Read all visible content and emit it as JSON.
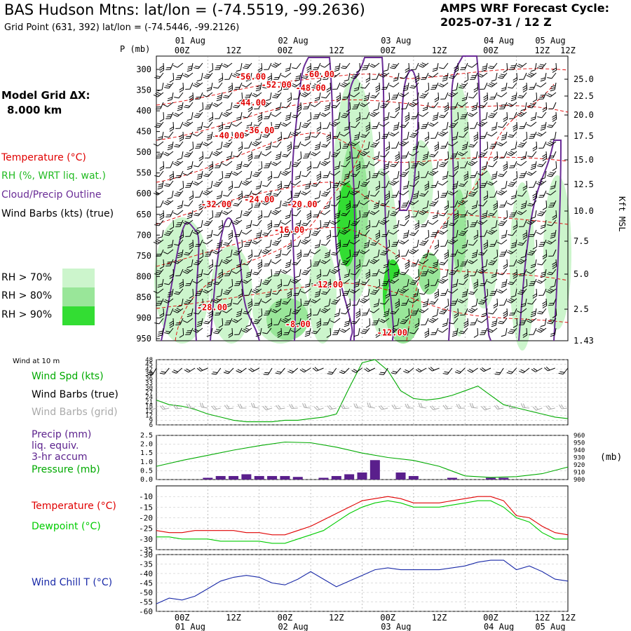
{
  "header": {
    "title": "BAS Hudson Mtns:  lat/lon = (-74.5519, -99.2636)",
    "subtitle": "Grid Point (631, 392) lat/lon = (-74.5446, -99.2126)",
    "forecast_line1": "AMPS WRF Forecast Cycle:",
    "forecast_line2": "2025-07-31 / 12  Z"
  },
  "model_grid": {
    "line1": "Model Grid ΔX:",
    "line2": "8.000 km"
  },
  "colors": {
    "temperature": "#e00000",
    "rh": "#22bb22",
    "cloud": "#6a2c96",
    "wind": "#000000",
    "wind_grid": "#aaaaaa",
    "precip": "#5a1f8c",
    "pressure": "#00aa00",
    "dewpoint": "#00cc00",
    "windchill": "#1a2aa8",
    "rh70": "#ccf5cc",
    "rh80": "#99e699",
    "rh90": "#33dd33"
  },
  "legend": {
    "temperature": "Temperature (°C)",
    "rh": "RH (%, WRT liq. wat.)",
    "cloud": "Cloud/Precip Outline",
    "wind": "Wind Barbs (kts) (true)",
    "rh70": "RH > 70%",
    "rh80": "RH > 80%",
    "rh90": "RH > 90%"
  },
  "time_axis": {
    "top_hours": [
      "00Z",
      "12Z",
      "00Z",
      "12Z",
      "00Z",
      "12Z",
      "00Z",
      "12Z",
      "00Z",
      "12Z"
    ],
    "dates": [
      "01 Aug",
      "02 Aug",
      "03 Aug",
      "04 Aug",
      "05 Aug"
    ]
  },
  "panel_labels": {
    "p_axis": "P (mb)",
    "kft_axis": "Kft MSL",
    "wind_at_10m": "Wind at 10 m",
    "wind_spd": "Wind Spd (kts)",
    "wind_barbs_true": "Wind Barbs (true)",
    "wind_barbs_grid": "Wind Barbs (grid)",
    "precip1": "Precip (mm)",
    "precip2": "liq. equiv.",
    "precip3": "3-hr accum",
    "pressure": "Pressure (mb)",
    "mb_unit": "(mb)",
    "temperature": "Temperature (°C)",
    "dewpoint": "Dewpoint (°C)",
    "windchill": "Wind Chill T (°C)"
  },
  "chart_data": [
    {
      "type": "heatmap",
      "ylabel": "P (mb)",
      "y2label": "Kft MSL",
      "pressure_ticks": [
        300,
        350,
        400,
        450,
        500,
        550,
        600,
        650,
        700,
        750,
        800,
        850,
        900,
        950
      ],
      "kft_ticks": [
        25.0,
        22.5,
        20.0,
        17.5,
        15.0,
        12.5,
        10.0,
        7.5,
        5.0,
        2.5,
        1.43
      ],
      "temperature_contour_labels": [
        {
          "label": "-56.00",
          "t": 22,
          "p": 318
        },
        {
          "label": "-60.00",
          "t": 38,
          "p": 312
        },
        {
          "label": "-52.00",
          "t": 28,
          "p": 337
        },
        {
          "label": "-48.00",
          "t": 36,
          "p": 345
        },
        {
          "label": "-44.00",
          "t": 22,
          "p": 380
        },
        {
          "label": "-36.00",
          "t": 24,
          "p": 447
        },
        {
          "label": "-40.00",
          "t": 17,
          "p": 460
        },
        {
          "label": "-24.00",
          "t": 24,
          "p": 614
        },
        {
          "label": "-32.00",
          "t": 14,
          "p": 626
        },
        {
          "label": "-20.00",
          "t": 34,
          "p": 626
        },
        {
          "label": "-16.00",
          "t": 31,
          "p": 688
        },
        {
          "label": "-12.00",
          "t": 40,
          "p": 820
        },
        {
          "label": "-28.00",
          "t": 13,
          "p": 875
        },
        {
          "label": "-8.00",
          "t": 33,
          "p": 915
        },
        {
          "label": "-12.00",
          "t": 55,
          "p": 936
        }
      ]
    },
    {
      "type": "line",
      "title": "Wind at 10 m",
      "ylabel": "Wind Spd (kts)",
      "yticks": [
        48,
        45,
        42,
        39,
        36,
        33,
        30,
        27,
        24,
        21,
        18,
        15,
        12,
        9,
        6
      ],
      "ylim": [
        6,
        48
      ],
      "x_hours": [
        0,
        3,
        6,
        9,
        12,
        15,
        18,
        21,
        24,
        27,
        30,
        33,
        36,
        39,
        42,
        45,
        48,
        51,
        54,
        57,
        60,
        63,
        66,
        69,
        72,
        75,
        78,
        81,
        84,
        87,
        90,
        93,
        96
      ],
      "wind_speed": [
        22,
        19,
        18,
        16,
        13,
        11,
        9,
        8,
        8,
        8,
        9,
        9,
        10,
        11,
        13,
        30,
        46,
        48,
        41,
        28,
        23,
        22,
        23,
        25,
        28,
        31,
        25,
        19,
        17,
        15,
        13,
        11,
        10
      ]
    },
    {
      "type": "bar",
      "ylabel": "Precip (mm)",
      "y2label": "Pressure (mb)",
      "yticks": [
        2.5,
        2.0,
        1.5,
        1.0,
        0.5,
        0.0
      ],
      "y2ticks": [
        960,
        950,
        940,
        930,
        920,
        910,
        900
      ],
      "ylim": [
        0,
        2.5
      ],
      "y2lim": [
        900,
        960
      ],
      "bar_hours": [
        12,
        15,
        18,
        21,
        24,
        27,
        30,
        33,
        39,
        42,
        45,
        48,
        51,
        57,
        60,
        69,
        78,
        81
      ],
      "precip": [
        0.1,
        0.2,
        0.2,
        0.3,
        0.2,
        0.2,
        0.2,
        0.15,
        0.1,
        0.2,
        0.3,
        0.4,
        1.1,
        0.4,
        0.2,
        0.1,
        0.1,
        0.1
      ],
      "pressure_hours": [
        0,
        6,
        12,
        18,
        24,
        30,
        36,
        42,
        48,
        54,
        60,
        66,
        72,
        78,
        84,
        90,
        96
      ],
      "pressure": [
        918,
        926,
        933,
        940,
        946,
        951,
        950,
        944,
        936,
        930,
        926,
        918,
        905,
        903,
        904,
        908,
        917
      ]
    },
    {
      "type": "line",
      "ylabel": "Temperature (°C)",
      "yticks": [
        -10,
        -15,
        -20,
        -25,
        -30,
        -35
      ],
      "ylim": [
        -35,
        -5
      ],
      "x_hours": [
        0,
        3,
        6,
        9,
        12,
        15,
        18,
        21,
        24,
        27,
        30,
        33,
        36,
        39,
        42,
        45,
        48,
        51,
        54,
        57,
        60,
        63,
        66,
        69,
        72,
        75,
        78,
        81,
        84,
        87,
        90,
        93,
        96
      ],
      "series": [
        {
          "name": "Temperature (°C)",
          "values": [
            -26,
            -27,
            -27,
            -26,
            -26,
            -26,
            -26,
            -27,
            -27,
            -28,
            -28,
            -26,
            -24,
            -21,
            -18,
            -15,
            -12,
            -11,
            -10,
            -11,
            -13,
            -13,
            -13,
            -12,
            -11,
            -10,
            -10,
            -12,
            -19,
            -20,
            -24,
            -27,
            -28
          ]
        },
        {
          "name": "Dewpoint (°C)",
          "values": [
            -29,
            -29,
            -30,
            -30,
            -30,
            -31,
            -31,
            -31,
            -31,
            -32,
            -32,
            -30,
            -28,
            -26,
            -22,
            -18,
            -15,
            -13,
            -12,
            -13,
            -15,
            -15,
            -15,
            -14,
            -13,
            -12,
            -12,
            -15,
            -20,
            -22,
            -27,
            -30,
            -30
          ]
        }
      ]
    },
    {
      "type": "line",
      "ylabel": "Wind Chill T (°C)",
      "yticks": [
        -30,
        -35,
        -40,
        -45,
        -50,
        -55,
        -60
      ],
      "ylim": [
        -60,
        -30
      ],
      "x_hours": [
        0,
        3,
        6,
        9,
        12,
        15,
        18,
        21,
        24,
        27,
        30,
        33,
        36,
        39,
        42,
        45,
        48,
        51,
        54,
        57,
        60,
        63,
        66,
        69,
        72,
        75,
        78,
        81,
        84,
        87,
        90,
        93,
        96
      ],
      "series": [
        {
          "name": "Wind Chill T (°C)",
          "values": [
            -56,
            -53,
            -54,
            -52,
            -48,
            -44,
            -42,
            -41,
            -42,
            -45,
            -46,
            -43,
            -39,
            -43,
            -47,
            -44,
            -41,
            -38,
            -37,
            -38,
            -38,
            -38,
            -38,
            -37,
            -36,
            -34,
            -33,
            -33,
            -38,
            -36,
            -39,
            -43,
            -44
          ]
        }
      ]
    }
  ]
}
